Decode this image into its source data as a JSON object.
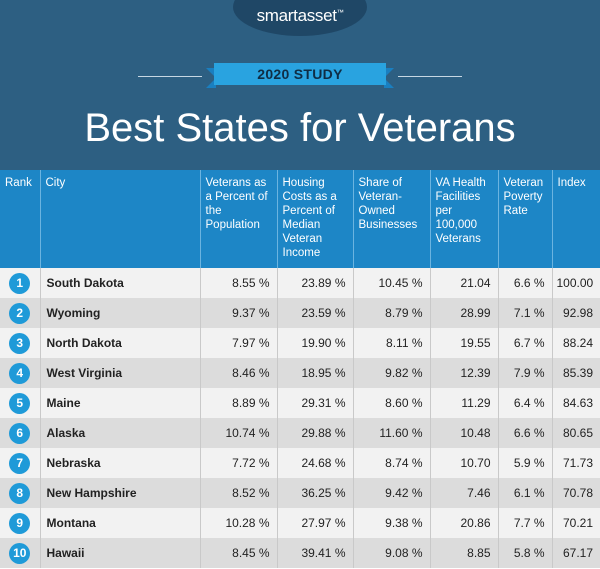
{
  "brand": "smartasset",
  "trademark": "™",
  "study_label": "2020 STUDY",
  "title": "Best States for Veterans",
  "columns": [
    "Rank",
    "City",
    "Veterans as a Percent of the Population",
    "Housing Costs as a Percent of Median Veteran Income",
    "Share of Veteran-Owned Businesses",
    "VA Health Facilities per 100,000 Veterans",
    "Veteran Poverty Rate",
    "Index"
  ],
  "rows": [
    {
      "rank": "1",
      "city": "South Dakota",
      "pct_pop": "8.55 %",
      "housing": "23.89 %",
      "businesses": "10.45 %",
      "va": "21.04",
      "poverty": "6.6 %",
      "index": "100.00"
    },
    {
      "rank": "2",
      "city": "Wyoming",
      "pct_pop": "9.37 %",
      "housing": "23.59 %",
      "businesses": "8.79 %",
      "va": "28.99",
      "poverty": "7.1 %",
      "index": "92.98"
    },
    {
      "rank": "3",
      "city": "North Dakota",
      "pct_pop": "7.97 %",
      "housing": "19.90 %",
      "businesses": "8.11 %",
      "va": "19.55",
      "poverty": "6.7 %",
      "index": "88.24"
    },
    {
      "rank": "4",
      "city": "West Virginia",
      "pct_pop": "8.46 %",
      "housing": "18.95 %",
      "businesses": "9.82 %",
      "va": "12.39",
      "poverty": "7.9 %",
      "index": "85.39"
    },
    {
      "rank": "5",
      "city": "Maine",
      "pct_pop": "8.89 %",
      "housing": "29.31 %",
      "businesses": "8.60 %",
      "va": "11.29",
      "poverty": "6.4 %",
      "index": "84.63"
    },
    {
      "rank": "6",
      "city": "Alaska",
      "pct_pop": "10.74 %",
      "housing": "29.88 %",
      "businesses": "11.60 %",
      "va": "10.48",
      "poverty": "6.6 %",
      "index": "80.65"
    },
    {
      "rank": "7",
      "city": "Nebraska",
      "pct_pop": "7.72 %",
      "housing": "24.68 %",
      "businesses": "8.74 %",
      "va": "10.70",
      "poverty": "5.9 %",
      "index": "71.73"
    },
    {
      "rank": "8",
      "city": "New Hampshire",
      "pct_pop": "8.52 %",
      "housing": "36.25 %",
      "businesses": "9.42 %",
      "va": "7.46",
      "poverty": "6.1 %",
      "index": "70.78"
    },
    {
      "rank": "9",
      "city": "Montana",
      "pct_pop": "10.28 %",
      "housing": "27.97 %",
      "businesses": "9.38 %",
      "va": "20.86",
      "poverty": "7.7 %",
      "index": "70.21"
    },
    {
      "rank": "10",
      "city": "Hawaii",
      "pct_pop": "8.45 %",
      "housing": "39.41 %",
      "businesses": "9.08 %",
      "va": "8.85",
      "poverty": "5.8 %",
      "index": "67.17"
    }
  ]
}
